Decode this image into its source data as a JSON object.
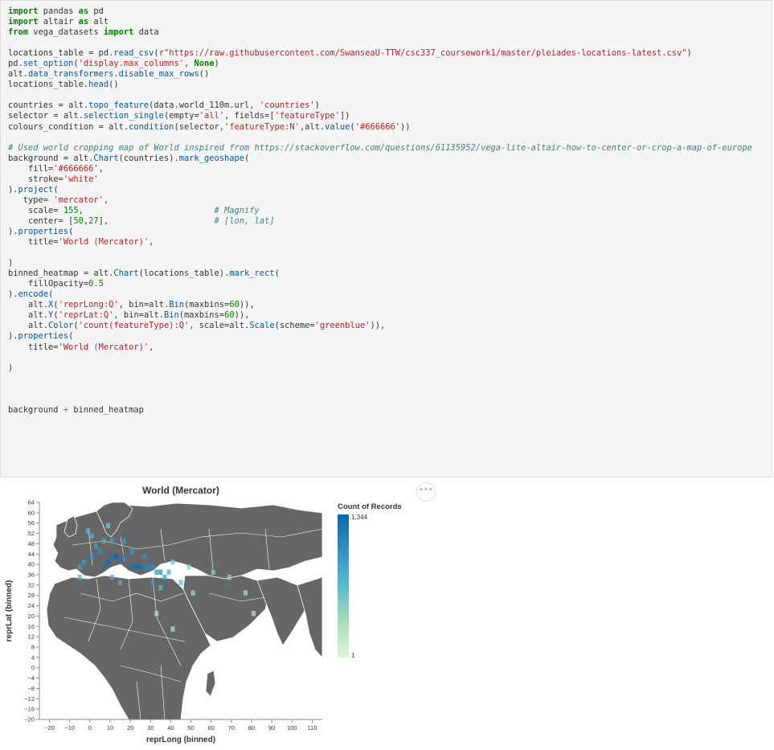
{
  "notebook_cell": {
    "code_lines": [
      "import pandas as pd",
      "import altair as alt",
      "from vega_datasets import data",
      "",
      "locations_table = pd.read_csv(r\"https://raw.githubusercontent.com/SwanseaU-TTW/csc337_coursework1/master/pleiades-locations-latest.csv\")",
      "pd.set_option('display.max_columns', None)",
      "alt.data_transformers.disable_max_rows()",
      "locations_table.head()",
      "",
      "countries = alt.topo_feature(data.world_110m.url, 'countries')",
      "selector = alt.selection_single(empty='all', fields=['featureType'])",
      "colours_condition = alt.condition(selector,'featureType:N',alt.value('#666666'))",
      "",
      "# Used world cropping map of World inspired from https://stackoverflow.com/questions/61135952/vega-lite-altair-how-to-center-or-crop-a-map-of-europe",
      "background = alt.Chart(countries).mark_geoshape(",
      "    fill='#666666',",
      "    stroke='white'",
      ").project(",
      "   type= 'mercator',",
      "    scale= 155,                          # Magnify",
      "    center= [50,27],                     # [lon, lat]",
      ").properties(",
      "    title='World (Mercator)',",
      "",
      ")",
      "binned_heatmap = alt.Chart(locations_table).mark_rect(",
      "    fillOpacity=0.5",
      ").encode(",
      "    alt.X('reprLong:Q', bin=alt.Bin(maxbins=60)),",
      "    alt.Y('reprLat:Q', bin=alt.Bin(maxbins=60)),",
      "    alt.Color('count(featureType):Q', scale=alt.Scale(scheme='greenblue')),",
      ").properties(",
      "    title='World (Mercator)',",
      "",
      ")",
      "",
      "",
      "",
      "background + binned_heatmap"
    ]
  },
  "output_menu": {
    "label": "•••"
  },
  "chart_data": {
    "type": "heatmap",
    "title": "World (Mercator)",
    "xlabel": "reprLong (binned)",
    "ylabel": "reprLat (binned)",
    "xlim": [
      -25,
      115
    ],
    "ylim": [
      -20,
      64
    ],
    "x_ticks": [
      -20,
      -10,
      0,
      10,
      20,
      30,
      40,
      50,
      60,
      70,
      80,
      90,
      100,
      110
    ],
    "y_ticks": [
      -20,
      -16,
      -12,
      -8,
      -4,
      0,
      4,
      8,
      12,
      16,
      20,
      24,
      28,
      32,
      36,
      40,
      44,
      48,
      52,
      56,
      60,
      64
    ],
    "legend": {
      "title": "Count of Records",
      "max_label": "1,344",
      "min_label": "1",
      "position": "right"
    },
    "colors": {
      "land": "#666666",
      "land_stroke": "#ffffff",
      "low": "#d6f0d0",
      "mid": "#7ccdbb",
      "high": "#0868ac"
    },
    "cells": [
      {
        "x": 6,
        "y": 38,
        "c": 900
      },
      {
        "x": 8,
        "y": 40,
        "c": 1100
      },
      {
        "x": 10,
        "y": 42,
        "c": 800
      },
      {
        "x": 12,
        "y": 42,
        "c": 1344
      },
      {
        "x": 14,
        "y": 40,
        "c": 700
      },
      {
        "x": 16,
        "y": 42,
        "c": 600
      },
      {
        "x": 20,
        "y": 38,
        "c": 1000
      },
      {
        "x": 22,
        "y": 38,
        "c": 1200
      },
      {
        "x": 24,
        "y": 38,
        "c": 950
      },
      {
        "x": 26,
        "y": 38,
        "c": 500
      },
      {
        "x": 28,
        "y": 38,
        "c": 450
      },
      {
        "x": 30,
        "y": 38,
        "c": 400
      },
      {
        "x": 32,
        "y": 36,
        "c": 300
      },
      {
        "x": 34,
        "y": 36,
        "c": 350
      },
      {
        "x": 36,
        "y": 34,
        "c": 250
      },
      {
        "x": -6,
        "y": 38,
        "c": 200
      },
      {
        "x": -4,
        "y": 40,
        "c": 260
      },
      {
        "x": 0,
        "y": 42,
        "c": 300
      },
      {
        "x": 2,
        "y": 46,
        "c": 280
      },
      {
        "x": 4,
        "y": 44,
        "c": 420
      },
      {
        "x": 6,
        "y": 48,
        "c": 150
      },
      {
        "x": 10,
        "y": 48,
        "c": 200
      },
      {
        "x": 16,
        "y": 48,
        "c": 240
      },
      {
        "x": 20,
        "y": 44,
        "c": 260
      },
      {
        "x": 26,
        "y": 42,
        "c": 320
      },
      {
        "x": 30,
        "y": 32,
        "c": 260
      },
      {
        "x": 14,
        "y": 32,
        "c": 120
      },
      {
        "x": 10,
        "y": 34,
        "c": 150
      },
      {
        "x": -6,
        "y": 34,
        "c": 120
      },
      {
        "x": 38,
        "y": 36,
        "c": 140
      },
      {
        "x": 44,
        "y": 32,
        "c": 80
      },
      {
        "x": 34,
        "y": 30,
        "c": 90
      },
      {
        "x": -2,
        "y": 52,
        "c": 90
      },
      {
        "x": 0,
        "y": 50,
        "c": 120
      },
      {
        "x": 8,
        "y": 54,
        "c": 40
      },
      {
        "x": 40,
        "y": 40,
        "c": 60
      },
      {
        "x": 48,
        "y": 38,
        "c": 30
      },
      {
        "x": 60,
        "y": 36,
        "c": 20
      },
      {
        "x": 68,
        "y": 34,
        "c": 15
      },
      {
        "x": 76,
        "y": 28,
        "c": 10
      },
      {
        "x": 80,
        "y": 20,
        "c": 8
      },
      {
        "x": 50,
        "y": 28,
        "c": 12
      },
      {
        "x": 32,
        "y": 20,
        "c": 6
      },
      {
        "x": 40,
        "y": 14,
        "c": 5
      }
    ]
  }
}
